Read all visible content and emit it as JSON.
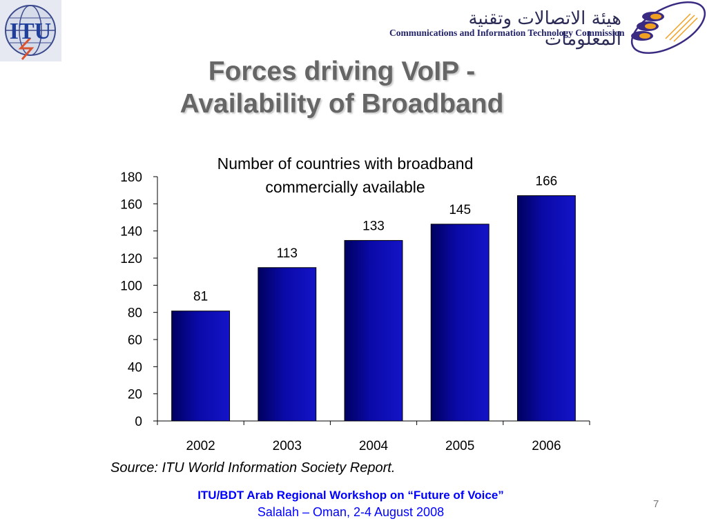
{
  "header": {
    "itu_logo_text": "ITU",
    "citc_arabic": "هيئة الاتصالات وتقنية المعلومات",
    "citc_english": "Communications and Information Technology Commission"
  },
  "slide": {
    "title_line1": "Forces driving VoIP -",
    "title_line2": "Availability of Broadband",
    "source": "Source: ITU World Information Society Report.",
    "footer_line1": "ITU/BDT Arab Regional Workshop on “Future of Voice”",
    "footer_line2": "Salalah – Oman, 2-4 August 2008",
    "page_number": "7"
  },
  "colors": {
    "bar_fill": "#0a0aa8",
    "title": "#666666",
    "footer": "#0000ff"
  },
  "chart_data": {
    "type": "bar",
    "title": "Number of countries with broadband commercially available",
    "title_lines": [
      "Number of countries with broadband",
      "commercially available"
    ],
    "categories": [
      "2002",
      "2003",
      "2004",
      "2005",
      "2006"
    ],
    "values": [
      81,
      113,
      133,
      145,
      166
    ],
    "data_labels": [
      "81",
      "113",
      "133",
      "145",
      "166"
    ],
    "yticks": [
      0,
      20,
      40,
      60,
      80,
      100,
      120,
      140,
      160,
      180
    ],
    "ylim": [
      0,
      180
    ],
    "xlabel": "",
    "ylabel": "",
    "grid": false,
    "legend": "none"
  }
}
